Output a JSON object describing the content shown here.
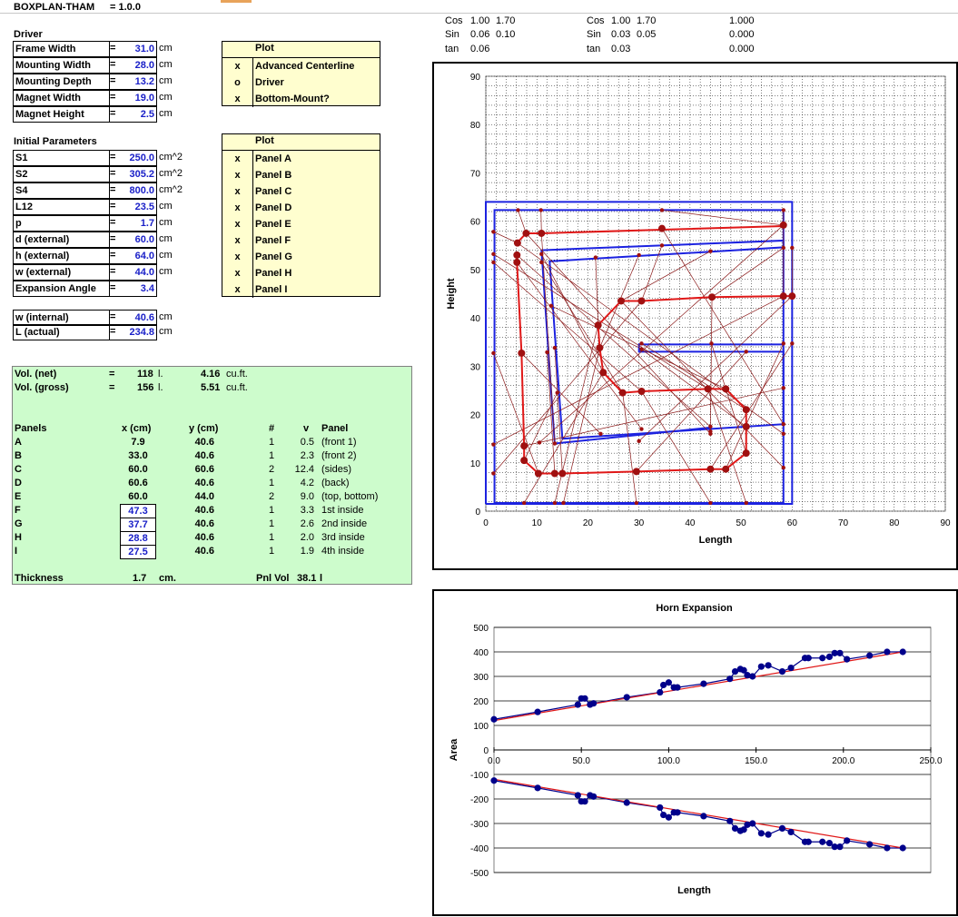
{
  "header": {
    "title": "BOXPLAN-THAM",
    "version_label": "= 1.0.0"
  },
  "trig": {
    "block1": {
      "cos_label": "Cos",
      "cos_a": "1.00",
      "cos_b": "1.70",
      "sin_label": "Sin",
      "sin_a": "0.06",
      "sin_b": "0.10",
      "tan_label": "tan",
      "tan_a": "0.06"
    },
    "block2": {
      "cos_label": "Cos",
      "cos_a": "1.00",
      "cos_b": "1.70",
      "sin_label": "Sin",
      "sin_a": "0.03",
      "sin_b": "0.05",
      "tan_label": "tan",
      "tan_a": "0.03"
    },
    "block3": {
      "cos": "1.000",
      "sin": "0.000",
      "tan": "0.000"
    }
  },
  "driver": {
    "section_title": "Driver",
    "rows": [
      {
        "label": "Frame Width",
        "eq": "=",
        "value": "31.0",
        "unit": "cm"
      },
      {
        "label": "Mounting Width",
        "eq": "=",
        "value": "28.0",
        "unit": "cm"
      },
      {
        "label": "Mounting Depth",
        "eq": "=",
        "value": "13.2",
        "unit": "cm"
      },
      {
        "label": "Magnet Width",
        "eq": "=",
        "value": "19.0",
        "unit": "cm"
      },
      {
        "label": "Magnet Height",
        "eq": "=",
        "value": "2.5",
        "unit": "cm"
      }
    ]
  },
  "plot1": {
    "header": "Plot",
    "rows": [
      {
        "mark": "x",
        "label": "Advanced Centerline"
      },
      {
        "mark": "o",
        "label": "Driver"
      },
      {
        "mark": "x",
        "label": "Bottom-Mount?"
      }
    ]
  },
  "initial": {
    "section_title": "Initial Parameters",
    "rows": [
      {
        "label": "S1",
        "eq": "=",
        "value": "250.0",
        "unit": "cm^2"
      },
      {
        "label": "S2",
        "eq": "=",
        "value": "305.2",
        "unit": "cm^2"
      },
      {
        "label": "S4",
        "eq": "=",
        "value": "800.0",
        "unit": "cm^2"
      },
      {
        "label": "L12",
        "eq": "=",
        "value": "23.5",
        "unit": "cm"
      },
      {
        "label": "p",
        "eq": "=",
        "value": "1.7",
        "unit": "cm"
      },
      {
        "label": "d (external)",
        "eq": "=",
        "value": "60.0",
        "unit": "cm"
      },
      {
        "label": "h (external)",
        "eq": "=",
        "value": "64.0",
        "unit": "cm"
      },
      {
        "label": "w (external)",
        "eq": "=",
        "value": "44.0",
        "unit": "cm"
      },
      {
        "label": "Expansion Angle",
        "eq": "=",
        "value": "3.4",
        "unit": ""
      }
    ]
  },
  "plot2": {
    "header": "Plot",
    "rows": [
      {
        "mark": "x",
        "label": "Panel A"
      },
      {
        "mark": "x",
        "label": "Panel B"
      },
      {
        "mark": "x",
        "label": "Panel C"
      },
      {
        "mark": "x",
        "label": "Panel D"
      },
      {
        "mark": "x",
        "label": "Panel E"
      },
      {
        "mark": "x",
        "label": "Panel F"
      },
      {
        "mark": "x",
        "label": "Panel G"
      },
      {
        "mark": "x",
        "label": "Panel H"
      },
      {
        "mark": "x",
        "label": "Panel I"
      }
    ]
  },
  "computed": {
    "rows": [
      {
        "label": "w (internal)",
        "eq": "=",
        "value": "40.6",
        "unit": "cm"
      },
      {
        "label": "L (actual)",
        "eq": "=",
        "value": "234.8",
        "unit": "cm"
      }
    ]
  },
  "volumes": {
    "net_label": "Vol. (net)",
    "net_eq": "=",
    "net_l": "118",
    "net_l_unit": "l.",
    "net_cuft": "4.16",
    "net_cuft_unit": "cu.ft.",
    "gross_label": "Vol. (gross)",
    "gross_eq": "=",
    "gross_l": "156",
    "gross_l_unit": "l.",
    "gross_cuft": "5.51",
    "gross_cuft_unit": "cu.ft."
  },
  "panels": {
    "headers": {
      "name": "Panels",
      "x": "x (cm)",
      "y": "y (cm)",
      "n": "#",
      "v": "v",
      "panel": "Panel"
    },
    "rows": [
      {
        "name": "A",
        "x": "7.9",
        "y": "40.6",
        "n": "1",
        "v": "0.5",
        "desc": "(front 1)",
        "boxed": false
      },
      {
        "name": "B",
        "x": "33.0",
        "y": "40.6",
        "n": "1",
        "v": "2.3",
        "desc": "(front 2)",
        "boxed": false
      },
      {
        "name": "C",
        "x": "60.0",
        "y": "60.6",
        "n": "2",
        "v": "12.4",
        "desc": "(sides)",
        "boxed": false
      },
      {
        "name": "D",
        "x": "60.6",
        "y": "40.6",
        "n": "1",
        "v": "4.2",
        "desc": "(back)",
        "boxed": false
      },
      {
        "name": "E",
        "x": "60.0",
        "y": "44.0",
        "n": "2",
        "v": "9.0",
        "desc": "(top, bottom)",
        "boxed": false
      },
      {
        "name": "F",
        "x": "47.3",
        "y": "40.6",
        "n": "1",
        "v": "3.3",
        "desc": "1st inside",
        "boxed": true
      },
      {
        "name": "G",
        "x": "37.7",
        "y": "40.6",
        "n": "1",
        "v": "2.6",
        "desc": "2nd inside",
        "boxed": true
      },
      {
        "name": "H",
        "x": "28.8",
        "y": "40.6",
        "n": "1",
        "v": "2.0",
        "desc": "3rd inside",
        "boxed": true
      },
      {
        "name": "I",
        "x": "27.5",
        "y": "40.6",
        "n": "1",
        "v": "1.9",
        "desc": "4th inside",
        "boxed": true
      }
    ],
    "thickness_label": "Thickness",
    "thickness_value": "1.7",
    "thickness_unit": "cm.",
    "pnlvol_label": "Pnl Vol",
    "pnlvol_value": "38.1",
    "pnlvol_unit": "l"
  },
  "colors": {
    "input_blue": "#1a20c8",
    "plot_bg": "#fffecf",
    "green_bg": "#cdfccc",
    "box_blue": "#1c22e0",
    "fold_red": "#e01818",
    "node_red": "#a01010",
    "expansion_blue": "#00008b"
  },
  "chart_data": [
    {
      "type": "scatter",
      "title": "",
      "xlabel": "Length",
      "ylabel": "Height",
      "xlim": [
        0,
        90
      ],
      "ylim": [
        0,
        90
      ],
      "xticks": [
        "0",
        "10",
        "20",
        "30",
        "40",
        "50",
        "60",
        "70",
        "80",
        "90"
      ],
      "yticks": [
        "0",
        "10",
        "20",
        "30",
        "40",
        "50",
        "60",
        "70",
        "80",
        "90"
      ],
      "grid": true,
      "outer_box": [
        [
          0,
          1.5
        ],
        [
          60,
          1.5
        ],
        [
          60,
          64
        ],
        [
          0,
          64
        ],
        [
          0,
          1.5
        ]
      ],
      "blue_lines": [
        [
          [
            1.7,
            1.7
          ],
          [
            58.3,
            1.7
          ],
          [
            58.3,
            62.3
          ],
          [
            1.7,
            62.3
          ],
          [
            1.7,
            1.7
          ]
        ],
        [
          [
            10.9,
            54
          ],
          [
            58.3,
            56
          ],
          [
            58.3,
            54.6
          ],
          [
            12.5,
            51.7
          ],
          [
            15,
            15
          ],
          [
            58.3,
            18
          ],
          [
            58.3,
            33
          ],
          [
            30,
            33
          ],
          [
            30,
            34.5
          ],
          [
            58.3,
            34.5
          ]
        ],
        [
          [
            10.9,
            54
          ],
          [
            13.5,
            14
          ],
          [
            44,
            17.3
          ]
        ]
      ],
      "red_lines": [
        [
          [
            6.1,
            55.5
          ],
          [
            7.9,
            57.5
          ],
          [
            10.9,
            57.5
          ],
          [
            58.3,
            59
          ]
        ],
        [
          [
            6.1,
            53
          ],
          [
            6.1,
            51.5
          ],
          [
            7,
            32.7
          ],
          [
            7.5,
            13.5
          ],
          [
            7.5,
            10.5
          ],
          [
            10.3,
            7.8
          ],
          [
            15,
            7.8
          ],
          [
            29.5,
            8.2
          ],
          [
            44,
            8.7
          ],
          [
            47,
            8.7
          ],
          [
            51,
            12
          ],
          [
            51,
            16
          ],
          [
            51,
            17.5
          ],
          [
            51,
            21
          ]
        ],
        [
          [
            51,
            21
          ],
          [
            47,
            25.3
          ],
          [
            43.5,
            25.3
          ],
          [
            30.5,
            24.8
          ],
          [
            26.8,
            24.5
          ],
          [
            23,
            28.7
          ],
          [
            22.3,
            33.8
          ],
          [
            22,
            38.5
          ],
          [
            26.5,
            43.5
          ],
          [
            30.5,
            43.5
          ],
          [
            44.3,
            44.3
          ],
          [
            58.3,
            44.5
          ],
          [
            60,
            44.5
          ]
        ]
      ],
      "nodes": [
        [
          6.2,
          55.5
        ],
        [
          7.9,
          57.5
        ],
        [
          10.9,
          57.5
        ],
        [
          58.3,
          59.2
        ],
        [
          58.3,
          44.5
        ],
        [
          60,
          44.5
        ],
        [
          44.3,
          44.3
        ],
        [
          30.5,
          43.5
        ],
        [
          26.5,
          43.5
        ],
        [
          22,
          38.5
        ],
        [
          22.3,
          33.8
        ],
        [
          23,
          28.7
        ],
        [
          26.8,
          24.5
        ],
        [
          30.5,
          24.8
        ],
        [
          43.5,
          25.3
        ],
        [
          47,
          25.3
        ],
        [
          51,
          21
        ],
        [
          51,
          17.5
        ],
        [
          51,
          12
        ],
        [
          47,
          8.7
        ],
        [
          44,
          8.7
        ],
        [
          29.5,
          8.2
        ],
        [
          15,
          7.8
        ],
        [
          13.5,
          7.8
        ],
        [
          10.3,
          7.8
        ],
        [
          7.5,
          10.5
        ],
        [
          7.5,
          13.5
        ],
        [
          7,
          32.7
        ],
        [
          6.1,
          51.5
        ],
        [
          6.1,
          53
        ],
        [
          34.5,
          58.5
        ]
      ],
      "small_nodes": [
        [
          1.5,
          57.8
        ],
        [
          6.3,
          62.3
        ],
        [
          10.8,
          62.3
        ],
        [
          34.5,
          62.3
        ],
        [
          58.3,
          62.3
        ],
        [
          60,
          54.5
        ],
        [
          58.3,
          54.5
        ],
        [
          34.5,
          55
        ],
        [
          44,
          53.8
        ],
        [
          21.5,
          52.5
        ],
        [
          30,
          53
        ],
        [
          10.9,
          53.2
        ],
        [
          10.9,
          51.5
        ],
        [
          1.5,
          51.5
        ],
        [
          1.5,
          53.2
        ],
        [
          12.8,
          42.5
        ],
        [
          30.5,
          34.7
        ],
        [
          30.5,
          33.5
        ],
        [
          44.2,
          34.7
        ],
        [
          58.3,
          34.7
        ],
        [
          60,
          34.7
        ],
        [
          51,
          33
        ],
        [
          13.5,
          33.8
        ],
        [
          12,
          32.9
        ],
        [
          1.5,
          32.7
        ],
        [
          14,
          24.5
        ],
        [
          58.3,
          25.5
        ],
        [
          22.5,
          16
        ],
        [
          30.5,
          17
        ],
        [
          44,
          17.5
        ],
        [
          58.3,
          18
        ],
        [
          58.3,
          16
        ],
        [
          44,
          16
        ],
        [
          13.5,
          14
        ],
        [
          10.5,
          14.2
        ],
        [
          1.5,
          13.8
        ],
        [
          30,
          14.5
        ],
        [
          44,
          16.5
        ],
        [
          1.5,
          7.8
        ],
        [
          58.3,
          9
        ],
        [
          13.5,
          1.7
        ],
        [
          15.2,
          1.7
        ],
        [
          7.5,
          1.7
        ],
        [
          29.5,
          1.7
        ],
        [
          44,
          1.7
        ],
        [
          51,
          1.7
        ]
      ]
    },
    {
      "type": "line",
      "title": "Horn Expansion",
      "xlabel": "Length",
      "ylabel": "Area",
      "xlim": [
        0,
        250
      ],
      "ylim": [
        -500,
        500
      ],
      "xticks": [
        "0.0",
        "50.0",
        "100.0",
        "150.0",
        "200.0",
        "250.0"
      ],
      "yticks": [
        "500",
        "400",
        "300",
        "200",
        "100",
        "0",
        "-100",
        "-200",
        "-300",
        "-400",
        "-500"
      ],
      "grid": true,
      "series": [
        {
          "x": [
            0,
            25,
            48,
            50,
            52,
            55,
            57,
            76,
            95,
            97,
            100,
            103,
            105,
            120,
            135,
            138,
            141,
            143,
            145,
            148,
            153,
            157,
            165,
            170,
            178,
            180,
            188,
            192,
            195,
            198,
            202,
            215,
            225,
            234
          ],
          "y": [
            125,
            155,
            185,
            210,
            210,
            185,
            190,
            215,
            235,
            265,
            275,
            255,
            255,
            270,
            290,
            320,
            330,
            325,
            305,
            300,
            340,
            345,
            320,
            335,
            375,
            375,
            375,
            380,
            395,
            395,
            370,
            385,
            400,
            400
          ]
        }
      ],
      "fit_line": [
        [
          0,
          120
        ],
        [
          234,
          400
        ]
      ]
    }
  ]
}
